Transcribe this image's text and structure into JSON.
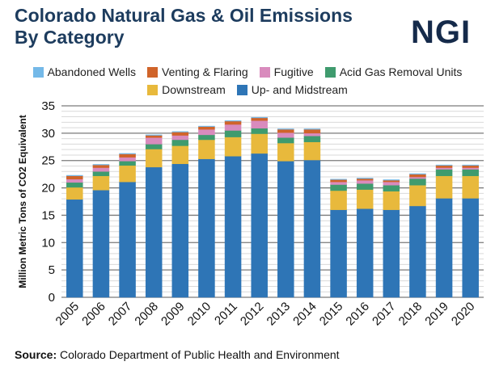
{
  "title_lines": [
    "Colorado Natural Gas & Oil Emissions",
    "By Category"
  ],
  "logo": "NGI",
  "source_label": "Source:",
  "source_text": "Colorado Department of Public Health and Environment",
  "chart_data": {
    "type": "bar",
    "stacked": true,
    "ylabel": "Million Metric Tons of CO2 Equivalent",
    "ylim": [
      0,
      35
    ],
    "yticks": [
      0,
      5,
      10,
      15,
      20,
      25,
      30,
      35
    ],
    "grid": true,
    "legend_position": "top",
    "categories": [
      "2005",
      "2006",
      "2007",
      "2008",
      "2009",
      "2010",
      "2011",
      "2012",
      "2013",
      "2014",
      "2015",
      "2016",
      "2017",
      "2018",
      "2019",
      "2020"
    ],
    "series": [
      {
        "name": "Up- and Midstream",
        "color": "#2e75b6",
        "values": [
          17.9,
          19.6,
          21.1,
          23.8,
          24.4,
          25.3,
          25.8,
          26.3,
          24.9,
          25.1,
          16.0,
          16.2,
          16.0,
          16.7,
          18.1,
          18.1
        ]
      },
      {
        "name": "Downstream",
        "color": "#e8b93c",
        "values": [
          2.2,
          2.6,
          3.0,
          3.3,
          3.3,
          3.5,
          3.5,
          3.6,
          3.3,
          3.3,
          3.5,
          3.5,
          3.4,
          3.8,
          4.1,
          4.1
        ]
      },
      {
        "name": "Acid Gas Removal Units",
        "color": "#3f9b6e",
        "values": [
          0.9,
          0.8,
          0.8,
          0.9,
          1.1,
          0.9,
          1.2,
          1.0,
          1.0,
          1.1,
          1.1,
          1.1,
          1.1,
          1.2,
          1.2,
          1.2
        ]
      },
      {
        "name": "Fugitive",
        "color": "#d98bbd",
        "values": [
          0.6,
          0.7,
          0.7,
          1.2,
          0.8,
          1.0,
          1.1,
          1.4,
          0.9,
          0.5,
          0.5,
          0.6,
          0.6,
          0.3,
          0.3,
          0.3
        ]
      },
      {
        "name": "Venting & Flaring",
        "color": "#d0642a",
        "values": [
          0.6,
          0.5,
          0.6,
          0.4,
          0.6,
          0.5,
          0.6,
          0.5,
          0.6,
          0.7,
          0.4,
          0.3,
          0.3,
          0.5,
          0.4,
          0.4
        ]
      },
      {
        "name": "Abandoned Wells",
        "color": "#74b9e8",
        "values": [
          0.1,
          0.1,
          0.1,
          0.1,
          0.1,
          0.1,
          0.1,
          0.1,
          0.1,
          0.1,
          0.1,
          0.1,
          0.1,
          0.1,
          0.1,
          0.1
        ]
      }
    ],
    "legend_rows": [
      [
        "Abandoned Wells",
        "Venting & Flaring",
        "Fugitive",
        "Acid Gas Removal Units"
      ],
      [
        "Downstream",
        "Up- and Midstream"
      ]
    ]
  }
}
